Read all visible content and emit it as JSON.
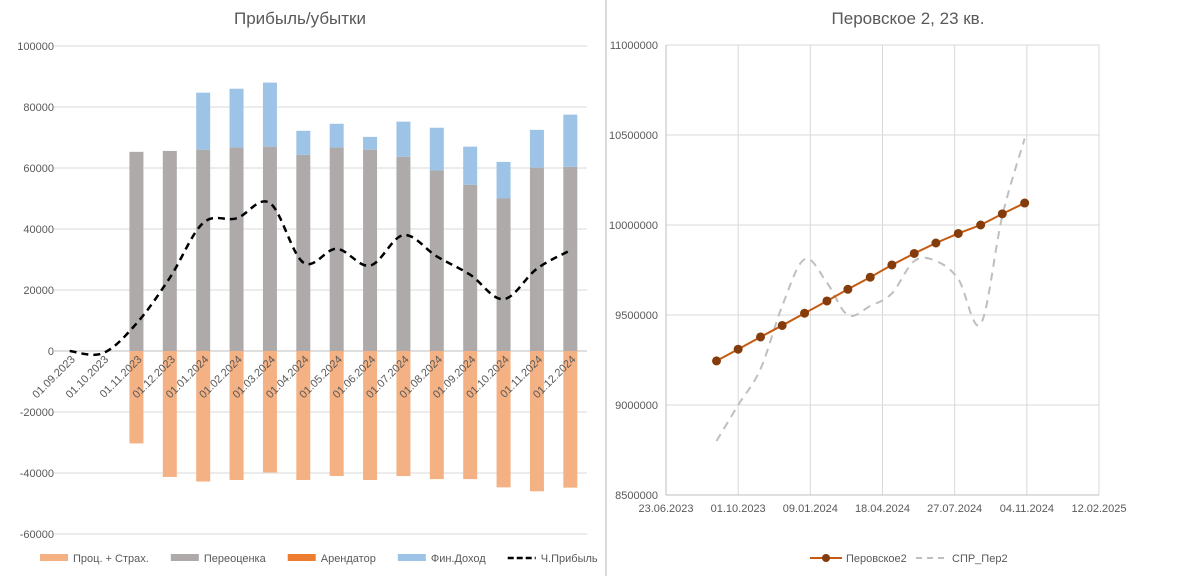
{
  "chart_data": [
    {
      "type": "bar",
      "title": "Прибыль/убытки",
      "categories": [
        "01.09.2023",
        "01.10.2023",
        "01.11.2023",
        "01.12.2023",
        "01.01.2024",
        "01.02.2024",
        "01.03.2024",
        "01.04.2024",
        "01.05.2024",
        "01.06.2024",
        "01.07.2024",
        "01.08.2024",
        "01.09.2024",
        "01.10.2024",
        "01.11.2024",
        "01.12.2024"
      ],
      "ylim": [
        -60000,
        100000
      ],
      "yticks": [
        "100000",
        "80000",
        "60000",
        "40000",
        "20000",
        "0",
        "-20000",
        "-40000",
        "-60000"
      ],
      "grid": true,
      "legend_position": "bottom",
      "series": [
        {
          "name": "Проц. + Страх.",
          "kind": "bar",
          "color": "#f4b183",
          "values": [
            0,
            0,
            -30300,
            -41300,
            -42800,
            -42300,
            -39800,
            -42300,
            -41000,
            -42300,
            -41000,
            -42000,
            -42000,
            -44700,
            -46000,
            -44800
          ]
        },
        {
          "name": "Переоценка",
          "kind": "bar",
          "color": "#aeaaaa",
          "values": [
            0,
            0,
            65300,
            65600,
            66000,
            66700,
            67000,
            64300,
            66700,
            66000,
            63700,
            59200,
            54500,
            50000,
            60100,
            60400
          ]
        },
        {
          "name": "Арендатор",
          "kind": "bar",
          "color": "#ed7d31",
          "values": [
            0,
            0,
            0,
            0,
            0,
            0,
            0,
            0,
            0,
            0,
            0,
            0,
            0,
            0,
            0,
            0
          ]
        },
        {
          "name": "Фин.Доход",
          "kind": "bar",
          "color": "#9dc3e6",
          "values": [
            0,
            0,
            0,
            0,
            18700,
            19300,
            21000,
            7900,
            7800,
            4200,
            11500,
            14000,
            12500,
            12000,
            12400,
            17100
          ]
        },
        {
          "name": "Ч.Прибыль",
          "kind": "line",
          "color": "#000000",
          "values": [
            0,
            -700,
            9000,
            24000,
            42000,
            43500,
            48500,
            29000,
            33500,
            28000,
            38000,
            31000,
            25000,
            17000,
            27000,
            33000
          ]
        }
      ]
    },
    {
      "type": "line",
      "title": "Перовское 2, 23 кв.",
      "x": [
        "01.09.2023",
        "01.10.2023",
        "01.11.2023",
        "01.12.2023",
        "01.01.2024",
        "01.02.2024",
        "01.03.2024",
        "01.04.2024",
        "01.05.2024",
        "01.06.2024",
        "01.07.2024",
        "01.08.2024",
        "01.09.2024",
        "01.10.2024",
        "01.11.2024"
      ],
      "xlim": [
        "23.06.2023",
        "12.02.2025"
      ],
      "xticks": [
        "23.06.2023",
        "01.10.2023",
        "09.01.2024",
        "18.04.2024",
        "27.07.2024",
        "04.11.2024",
        "12.02.2025"
      ],
      "ylim": [
        8500000,
        11000000
      ],
      "yticks": [
        "11000000",
        "10500000",
        "10000000",
        "9500000",
        "9000000",
        "8500000"
      ],
      "grid": true,
      "legend_position": "bottom",
      "series": [
        {
          "name": "Перовское2",
          "color": "#c55a11",
          "marker": "circle",
          "values": [
            9245000,
            9310000,
            9378000,
            9442000,
            9510000,
            9578000,
            9643000,
            9710000,
            9778000,
            9842000,
            9900000,
            9953000,
            10000000,
            10062000,
            10122000
          ]
        },
        {
          "name": "СПР_Пер2",
          "color": "#bfbfbf",
          "dashed": true,
          "values": [
            8800000,
            9000000,
            9200000,
            9550000,
            9810000,
            9680000,
            9500000,
            9550000,
            9620000,
            9800000,
            9800000,
            9700000,
            9450000,
            10050000,
            10480000
          ]
        }
      ]
    }
  ]
}
